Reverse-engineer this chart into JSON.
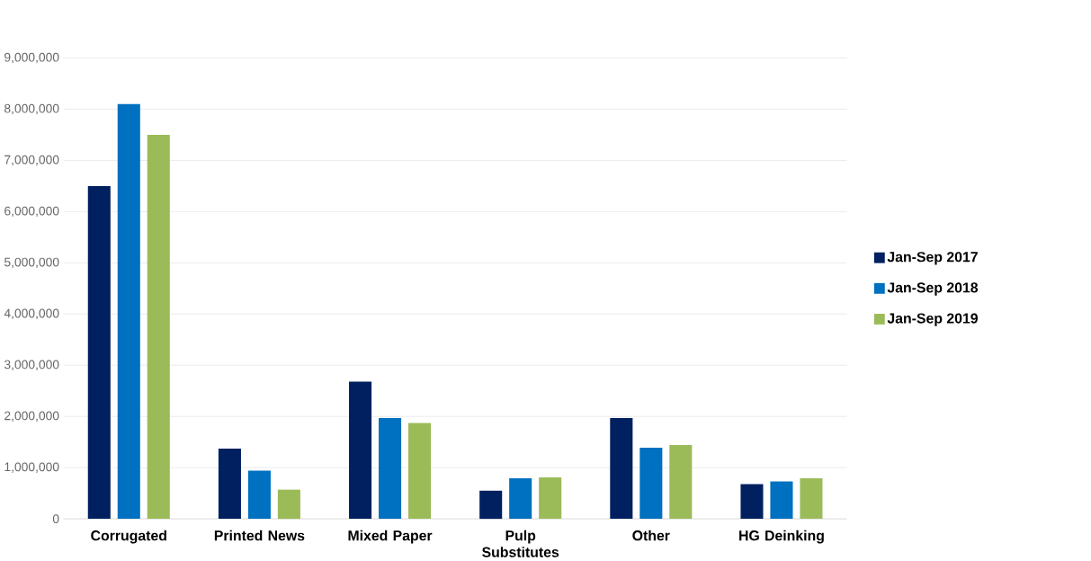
{
  "chart_data": {
    "type": "bar",
    "categories": [
      "Corrugated",
      "Printed News",
      "Mixed Paper",
      "Pulp Substitutes",
      "Other",
      "HG Deinking"
    ],
    "series": [
      {
        "name": "Jan-Sep 2017",
        "color": "#002060",
        "values": [
          6500000,
          1370000,
          2680000,
          550000,
          1970000,
          680000
        ]
      },
      {
        "name": "Jan-Sep 2018",
        "color": "#0070c0",
        "values": [
          8100000,
          940000,
          1970000,
          790000,
          1390000,
          730000
        ]
      },
      {
        "name": "Jan-Sep 2019",
        "color": "#9bbb59",
        "values": [
          7500000,
          570000,
          1870000,
          810000,
          1440000,
          790000
        ]
      }
    ],
    "ylim": [
      0,
      9000000
    ],
    "yticks": [
      {
        "value": 0,
        "label": "0"
      },
      {
        "value": 1000000,
        "label": "1,000,000"
      },
      {
        "value": 2000000,
        "label": "2,000,000"
      },
      {
        "value": 3000000,
        "label": "3,000,000"
      },
      {
        "value": 4000000,
        "label": "4,000,000"
      },
      {
        "value": 5000000,
        "label": "5,000,000"
      },
      {
        "value": 6000000,
        "label": "6,000,000"
      },
      {
        "value": 7000000,
        "label": "7,000,000"
      },
      {
        "value": 8000000,
        "label": "8,000,000"
      },
      {
        "value": 9000000,
        "label": "9,000,000"
      }
    ],
    "grid": "y",
    "legend": "right"
  }
}
